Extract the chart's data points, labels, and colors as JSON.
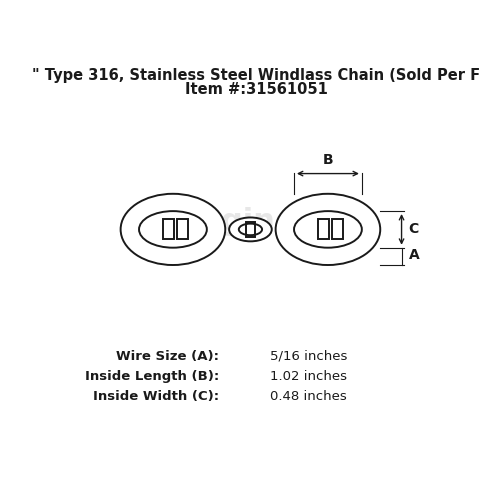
{
  "title_line1": "\" Type 316, Stainless Steel Windlass Chain (Sold Per F",
  "title_line2": "Item #:31561051",
  "specs": [
    {
      "label": "Wire Size (A):",
      "value": "5/16 inches"
    },
    {
      "label": "Inside Length (B):",
      "value": "1.02 inches"
    },
    {
      "label": "Inside Width (C):",
      "value": "0.48 inches"
    }
  ],
  "bg_color": "#ffffff",
  "line_color": "#1a1a1a",
  "watermark_color": "#d8d8d8",
  "title_fontsize": 10.5,
  "spec_label_fontsize": 9.5,
  "spec_value_fontsize": 9.5
}
